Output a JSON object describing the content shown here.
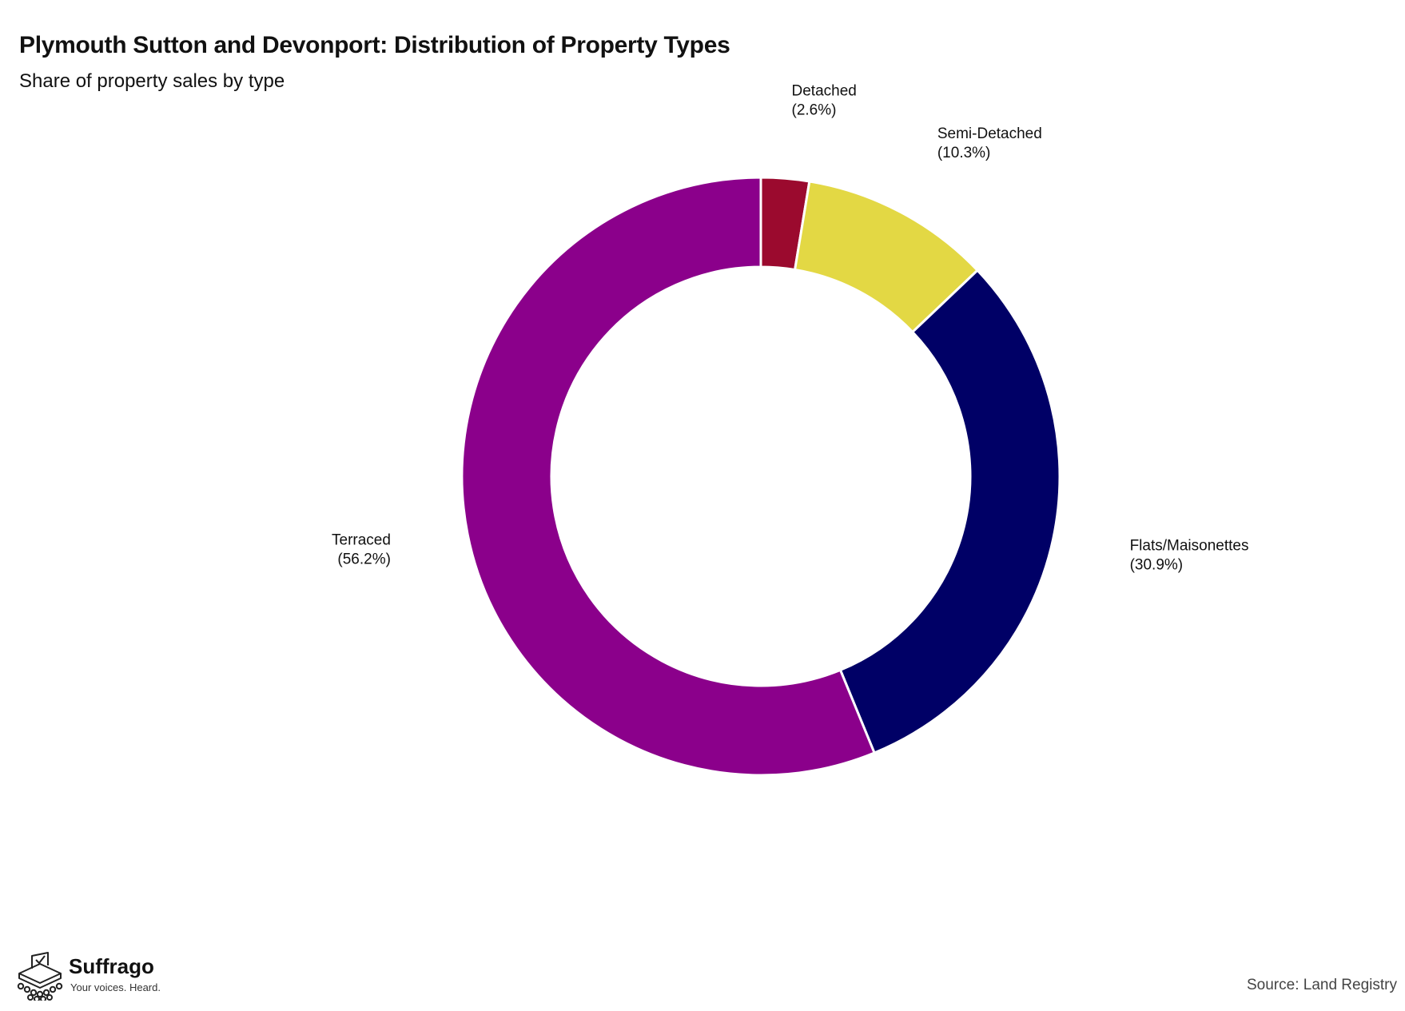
{
  "header": {
    "title": "Plymouth Sutton and Devonport: Distribution of Property Types",
    "subtitle": "Share of property sales by type"
  },
  "chart_data": {
    "type": "pie",
    "variant": "donut",
    "title": "Plymouth Sutton and Devonport: Distribution of Property Types",
    "subtitle": "Share of property sales by type",
    "units": "%",
    "start": "12 o'clock",
    "direction": "clockwise",
    "slices": [
      {
        "label": "Detached",
        "value": 2.6,
        "value_label": "(2.6%)",
        "color": "#9b0a2e"
      },
      {
        "label": "Semi-Detached",
        "value": 10.3,
        "value_label": "(10.3%)",
        "color": "#e3d844"
      },
      {
        "label": "Flats/Maisonettes",
        "value": 30.9,
        "value_label": "(30.9%)",
        "color": "#000066"
      },
      {
        "label": "Terraced",
        "value": 56.2,
        "value_label": "(56.2%)",
        "color": "#8b008b"
      }
    ]
  },
  "footer": {
    "brand_name": "Suffrago",
    "brand_tagline": "Your voices. Heard.",
    "source": "Source: Land Registry"
  }
}
